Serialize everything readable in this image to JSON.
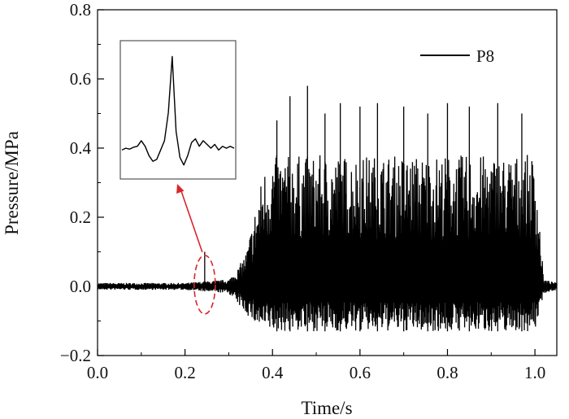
{
  "chart_data": {
    "type": "line",
    "xlabel": "Time/s",
    "ylabel": "Pressure/MPa",
    "xlim": [
      0.0,
      1.05
    ],
    "ylim": [
      -0.2,
      0.8
    ],
    "xticks": [
      "0.0",
      "0.2",
      "0.4",
      "0.6",
      "0.8",
      "1.0"
    ],
    "yticks": [
      "−0.2",
      "0.0",
      "0.2",
      "0.4",
      "0.6",
      "0.8"
    ],
    "grid": false,
    "legend_position": "top-right",
    "series": [
      {
        "name": "P8",
        "color": "#000000",
        "profile": {
          "x": [
            0.0,
            0.2,
            0.3,
            0.32,
            0.34,
            0.36,
            0.38,
            0.4,
            0.6,
            0.8,
            1.0,
            1.02,
            1.05
          ],
          "upper": [
            0.01,
            0.01,
            0.02,
            0.05,
            0.1,
            0.22,
            0.34,
            0.38,
            0.38,
            0.38,
            0.38,
            0.02,
            0.01
          ],
          "lower": [
            -0.01,
            -0.01,
            -0.02,
            -0.05,
            -0.08,
            -0.11,
            -0.13,
            -0.13,
            -0.13,
            -0.13,
            -0.13,
            -0.02,
            -0.01
          ]
        },
        "peaks": [
          {
            "x": 0.245,
            "y": 0.1
          },
          {
            "x": 0.41,
            "y": 0.48
          },
          {
            "x": 0.44,
            "y": 0.55
          },
          {
            "x": 0.48,
            "y": 0.58
          },
          {
            "x": 0.52,
            "y": 0.5
          },
          {
            "x": 0.555,
            "y": 0.53
          },
          {
            "x": 0.6,
            "y": 0.52
          },
          {
            "x": 0.64,
            "y": 0.53
          },
          {
            "x": 0.7,
            "y": 0.52
          },
          {
            "x": 0.755,
            "y": 0.5
          },
          {
            "x": 0.8,
            "y": 0.53
          },
          {
            "x": 0.85,
            "y": 0.52
          },
          {
            "x": 0.915,
            "y": 0.53
          },
          {
            "x": 0.97,
            "y": 0.5
          }
        ]
      }
    ],
    "annotations": {
      "highlight_x": 0.245,
      "highlight_color": "#d9262b",
      "inset_series": [
        0.0,
        0.01,
        0.005,
        0.015,
        0.02,
        0.05,
        0.02,
        -0.03,
        -0.06,
        -0.05,
        0.0,
        0.05,
        0.2,
        0.5,
        0.1,
        -0.04,
        -0.08,
        -0.03,
        0.04,
        0.06,
        0.02,
        0.05,
        0.03,
        0.01,
        0.03,
        0.0,
        0.02,
        0.01,
        0.02,
        0.01
      ]
    }
  }
}
